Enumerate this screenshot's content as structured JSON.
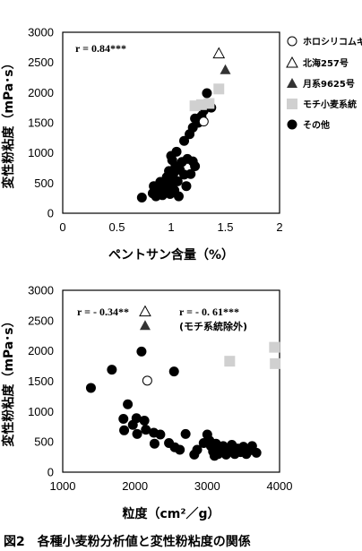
{
  "caption": "図2　各種小麦粉分析値と変性粉粘度の関係",
  "chart_data": [
    {
      "type": "scatter",
      "xlabel": "ペントサン含量（%）",
      "ylabel": "変性粉粘度（mPa･s）",
      "xlim": [
        0,
        2
      ],
      "ylim": [
        0,
        3000
      ],
      "xticks": [
        "0",
        "0.5",
        "1",
        "1.5",
        "2"
      ],
      "yticks": [
        "0",
        "500",
        "1000",
        "1500",
        "2000",
        "2500",
        "3000"
      ],
      "annotations": [
        "r = 0.84***"
      ],
      "legend_position": "top-right",
      "series": [
        {
          "name": "ホロシリコムギ",
          "marker": "open-circle",
          "points": [
            [
              1.3,
              1520
            ]
          ]
        },
        {
          "name": "北海257号",
          "marker": "open-triangle",
          "points": [
            [
              1.44,
              2650
            ]
          ]
        },
        {
          "name": "月系9625号",
          "marker": "filled-triangle",
          "points": [
            [
              1.5,
              2380
            ]
          ]
        },
        {
          "name": "モチ小麦系統",
          "marker": "gray-square",
          "points": [
            [
              1.22,
              1780
            ],
            [
              1.28,
              1800
            ],
            [
              1.35,
              1820
            ],
            [
              1.44,
              2060
            ]
          ]
        },
        {
          "name": "その他",
          "marker": "filled-circle",
          "points": [
            [
              0.73,
              260
            ],
            [
              0.83,
              330
            ],
            [
              0.84,
              450
            ],
            [
              0.86,
              280
            ],
            [
              0.88,
              380
            ],
            [
              0.9,
              520
            ],
            [
              0.92,
              300
            ],
            [
              0.93,
              430
            ],
            [
              0.95,
              360
            ],
            [
              0.96,
              600
            ],
            [
              0.97,
              480
            ],
            [
              0.98,
              700
            ],
            [
              0.99,
              320
            ],
            [
              1.0,
              560
            ],
            [
              1.0,
              420
            ],
            [
              1.01,
              880
            ],
            [
              1.02,
              650
            ],
            [
              1.03,
              380
            ],
            [
              1.04,
              780
            ],
            [
              1.05,
              1020
            ],
            [
              1.06,
              530
            ],
            [
              1.07,
              280
            ],
            [
              1.08,
              720
            ],
            [
              1.1,
              850
            ],
            [
              1.12,
              640
            ],
            [
              1.14,
              450
            ],
            [
              1.15,
              900
            ],
            [
              1.18,
              650
            ],
            [
              1.2,
              860
            ],
            [
              1.22,
              780
            ],
            [
              1.12,
              1200
            ],
            [
              1.17,
              1310
            ],
            [
              1.2,
              1420
            ],
            [
              1.22,
              1570
            ],
            [
              1.28,
              1610
            ],
            [
              1.3,
              1700
            ],
            [
              1.33,
              1990
            ],
            [
              1.37,
              1750
            ],
            [
              1.25,
              1500
            ],
            [
              1.0,
              950
            ]
          ]
        }
      ]
    },
    {
      "type": "scatter",
      "xlabel": "粒度（cm²／g）",
      "ylabel": "変性粉粘度（mPa･s）",
      "xlim": [
        1000,
        4000
      ],
      "ylim": [
        0,
        3000
      ],
      "xticks": [
        "1000",
        "2000",
        "3000",
        "4000"
      ],
      "yticks": [
        "0",
        "500",
        "1000",
        "1500",
        "2000",
        "2500",
        "3000"
      ],
      "annotations": [
        "r = - 0.34**",
        "r = - 0. 61***",
        "(モチ系統除外)"
      ],
      "series": [
        {
          "name": "ホロシリコムギ",
          "marker": "open-circle",
          "points": [
            [
              2170,
              1510
            ]
          ]
        },
        {
          "name": "北海257号",
          "marker": "open-triangle",
          "points": [
            [
              2140,
              2650
            ]
          ]
        },
        {
          "name": "月系9625号",
          "marker": "filled-triangle",
          "points": [
            [
              2140,
              2420
            ]
          ]
        },
        {
          "name": "モチ小麦系統",
          "marker": "gray-square",
          "points": [
            [
              3310,
              1830
            ],
            [
              3930,
              2060
            ],
            [
              3940,
              1790
            ]
          ]
        },
        {
          "name": "その他",
          "marker": "filled-circle",
          "points": [
            [
              1390,
              1390
            ],
            [
              1680,
              1690
            ],
            [
              2090,
              1990
            ],
            [
              2540,
              1660
            ],
            [
              1900,
              1120
            ],
            [
              2020,
              890
            ],
            [
              2130,
              850
            ],
            [
              1840,
              880
            ],
            [
              1970,
              780
            ],
            [
              1850,
              690
            ],
            [
              2030,
              630
            ],
            [
              2150,
              700
            ],
            [
              2260,
              650
            ],
            [
              2350,
              620
            ],
            [
              2470,
              480
            ],
            [
              2270,
              470
            ],
            [
              2550,
              410
            ],
            [
              2620,
              370
            ],
            [
              2700,
              630
            ],
            [
              2860,
              370
            ],
            [
              2950,
              480
            ],
            [
              3000,
              620
            ],
            [
              3030,
              520
            ],
            [
              3050,
              430
            ],
            [
              3080,
              340
            ],
            [
              3120,
              470
            ],
            [
              3150,
              300
            ],
            [
              3180,
              380
            ],
            [
              3220,
              430
            ],
            [
              3260,
              290
            ],
            [
              3300,
              360
            ],
            [
              3340,
              450
            ],
            [
              3380,
              300
            ],
            [
              3420,
              390
            ],
            [
              3460,
              330
            ],
            [
              3500,
              420
            ],
            [
              3540,
              300
            ],
            [
              3570,
              350
            ],
            [
              3620,
              430
            ],
            [
              3680,
              320
            ],
            [
              2820,
              290
            ],
            [
              3100,
              270
            ]
          ]
        }
      ]
    }
  ]
}
